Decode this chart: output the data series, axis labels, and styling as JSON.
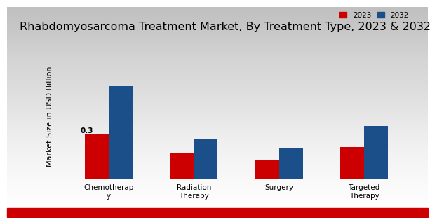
{
  "title": "Rhabdomyosarcoma Treatment Market, By Treatment Type, 2023 & 2032",
  "ylabel": "Market Size in USD Billion",
  "categories": [
    "Chemotherap\ny",
    "Radiation\nTherapy",
    "Surgery",
    "Targeted\nTherapy"
  ],
  "values_2023": [
    0.3,
    0.175,
    0.13,
    0.215
  ],
  "values_2032": [
    0.62,
    0.265,
    0.21,
    0.355
  ],
  "color_2023": "#cc0000",
  "color_2032": "#1a4f8a",
  "annotation_text": "0.3",
  "annotation_category": 0,
  "bar_width": 0.28,
  "bg_top": "#d8d8d8",
  "bg_bottom": "#f5f5f5",
  "bottom_bar_color": "#cc0000",
  "legend_labels": [
    "2023",
    "2032"
  ],
  "title_fontsize": 11.5,
  "axis_label_fontsize": 8,
  "tick_fontsize": 7.5
}
